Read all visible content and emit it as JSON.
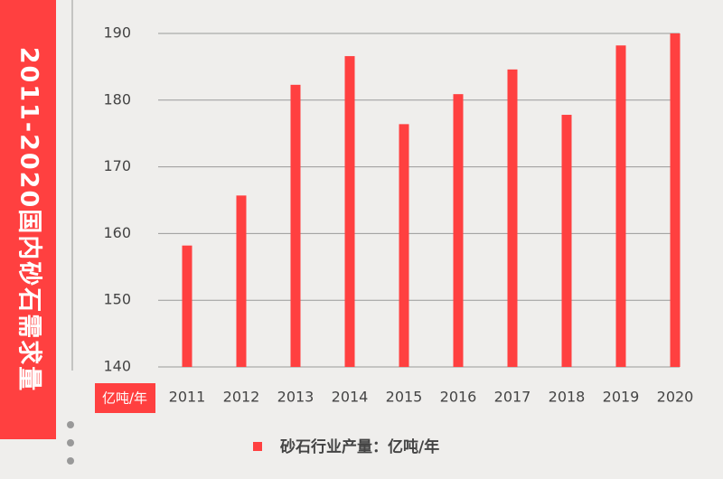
{
  "chart_data": {
    "type": "bar",
    "title": "2011-2020国内砂石需求量",
    "y_unit": "亿吨/年",
    "categories": [
      "2011",
      "2012",
      "2013",
      "2014",
      "2015",
      "2016",
      "2017",
      "2018",
      "2019",
      "2020"
    ],
    "series": [
      {
        "name": "砂石行业产量：亿吨/年",
        "color": "#ff4040",
        "values": [
          158.2,
          165.7,
          182.3,
          186.6,
          176.4,
          180.9,
          184.6,
          177.8,
          188.2,
          190
        ]
      }
    ],
    "ylim": [
      140,
      190
    ],
    "yticks": [
      140,
      150,
      160,
      170,
      180,
      190
    ],
    "grid": true
  }
}
